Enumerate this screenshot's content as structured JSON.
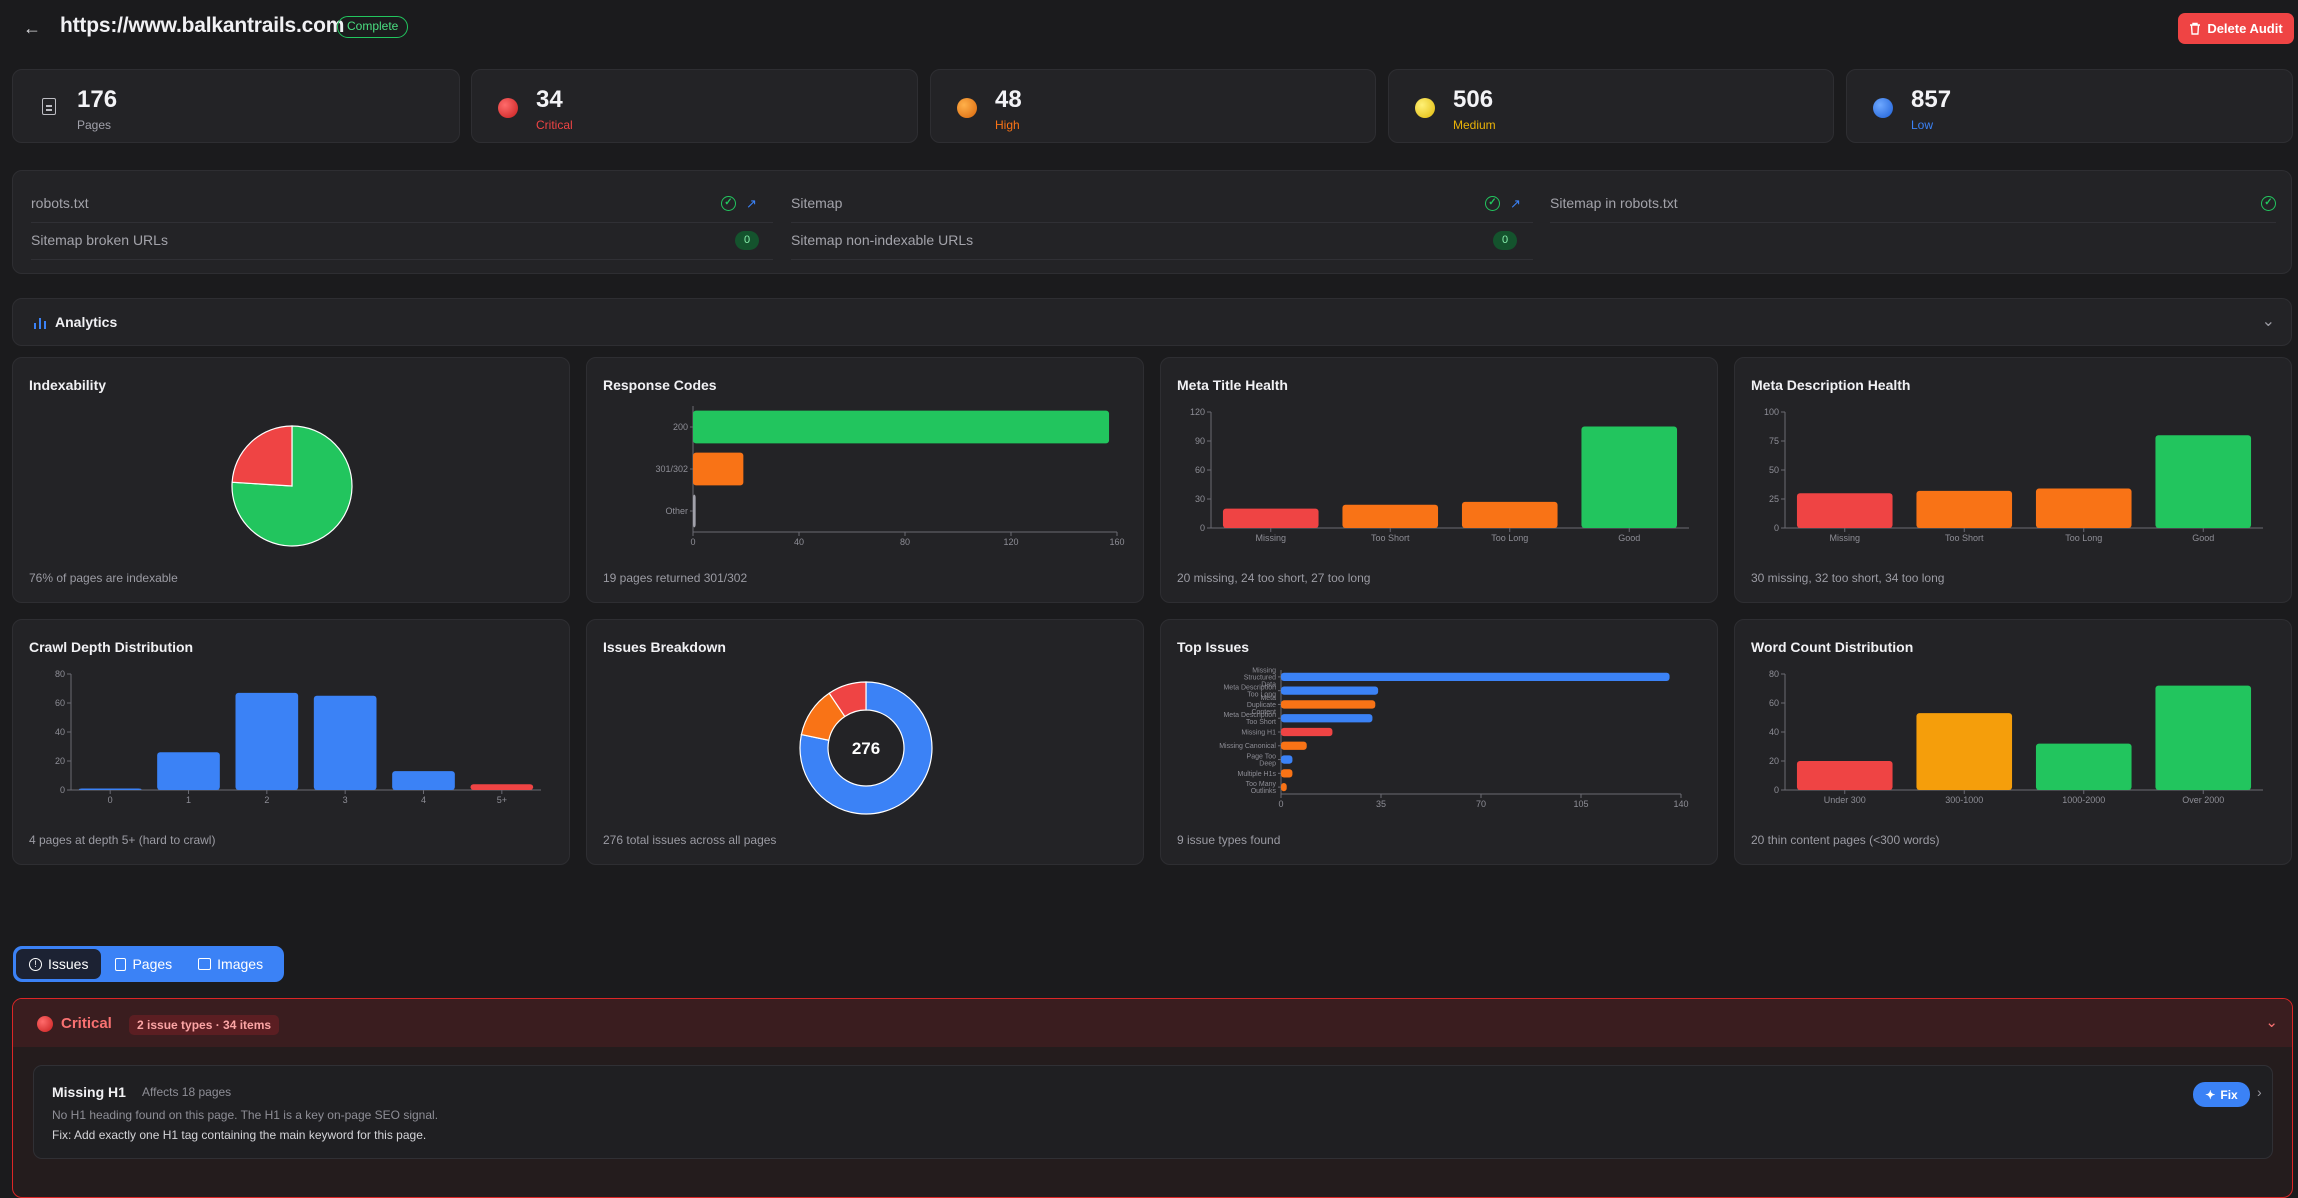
{
  "header": {
    "title": "https://www.balkantrails.com",
    "status": "Complete",
    "delete_label": "Delete Audit"
  },
  "stats": [
    {
      "value": "176",
      "label": "Pages",
      "color": "#a1a1aa"
    },
    {
      "value": "34",
      "label": "Critical",
      "color": "#ef4444"
    },
    {
      "value": "48",
      "label": "High",
      "color": "#f97316"
    },
    {
      "value": "506",
      "label": "Medium",
      "color": "#eab308"
    },
    {
      "value": "857",
      "label": "Low",
      "color": "#3b82f6"
    }
  ],
  "checks": {
    "robots": "robots.txt",
    "sitemap": "Sitemap",
    "sitemap_in_robots": "Sitemap in robots.txt",
    "sitemap_broken": "Sitemap broken URLs",
    "sitemap_broken_count": "0",
    "sitemap_nonindexable": "Sitemap non-indexable URLs",
    "sitemap_nonindexable_count": "0"
  },
  "analytics": {
    "title": "Analytics"
  },
  "charts": {
    "indexability": {
      "title": "Indexability",
      "summary": "76% of pages are indexable"
    },
    "response_codes": {
      "title": "Response Codes",
      "summary": "19 pages returned 301/302"
    },
    "meta_title": {
      "title": "Meta Title Health",
      "summary": "20 missing, 24 too short, 27 too long"
    },
    "meta_desc": {
      "title": "Meta Description Health",
      "summary": "30 missing, 32 too short, 34 too long"
    },
    "crawl_depth": {
      "title": "Crawl Depth Distribution",
      "summary": "4 pages at depth 5+ (hard to crawl)"
    },
    "issues_breakdown": {
      "title": "Issues Breakdown",
      "summary": "276 total issues across all pages",
      "center": "276"
    },
    "top_issues": {
      "title": "Top Issues",
      "summary": "9 issue types found"
    },
    "word_count": {
      "title": "Word Count Distribution",
      "summary": "20 thin content pages (<300 words)"
    }
  },
  "chart_data": [
    {
      "type": "pie",
      "title": "Indexability",
      "slices": [
        {
          "value": 76,
          "color": "#22c55e"
        },
        {
          "value": 24,
          "color": "#ef4444"
        }
      ]
    },
    {
      "type": "bar",
      "orientation": "horizontal",
      "title": "Response Codes",
      "categories": [
        "200",
        "301/302",
        "Other"
      ],
      "values": [
        157,
        19,
        1
      ],
      "colors": [
        "#22c55e",
        "#f97316",
        "#a1a1aa"
      ],
      "xticks": [
        "0",
        "40",
        "80",
        "120",
        "160"
      ],
      "xlim": [
        0,
        160
      ]
    },
    {
      "type": "bar",
      "title": "Meta Title Health",
      "categories": [
        "Missing",
        "Too Short",
        "Too Long",
        "Good"
      ],
      "values": [
        20,
        24,
        27,
        105
      ],
      "colors": [
        "#ef4444",
        "#f97316",
        "#f97316",
        "#22c55e"
      ],
      "yticks": [
        "0",
        "30",
        "60",
        "90",
        "120"
      ],
      "ylim": [
        0,
        120
      ]
    },
    {
      "type": "bar",
      "title": "Meta Description Health",
      "categories": [
        "Missing",
        "Too Short",
        "Too Long",
        "Good"
      ],
      "values": [
        30,
        32,
        34,
        80
      ],
      "colors": [
        "#ef4444",
        "#f97316",
        "#f97316",
        "#22c55e"
      ],
      "yticks": [
        "0",
        "25",
        "50",
        "75",
        "100"
      ],
      "ylim": [
        0,
        100
      ]
    },
    {
      "type": "bar",
      "title": "Crawl Depth Distribution",
      "categories": [
        "0",
        "1",
        "2",
        "3",
        "4",
        "5+"
      ],
      "values": [
        1,
        26,
        67,
        65,
        13,
        4
      ],
      "colors": [
        "#3b82f6",
        "#3b82f6",
        "#3b82f6",
        "#3b82f6",
        "#3b82f6",
        "#ef4444"
      ],
      "yticks": [
        "0",
        "20",
        "40",
        "60",
        "80"
      ],
      "ylim": [
        0,
        80
      ]
    },
    {
      "type": "donut",
      "title": "Issues Breakdown",
      "center": "276",
      "slices": [
        {
          "value": 216,
          "color": "#3b82f6"
        },
        {
          "value": 34,
          "color": "#f97316"
        },
        {
          "value": 26,
          "color": "#ef4444"
        }
      ]
    },
    {
      "type": "bar",
      "orientation": "horizontal",
      "title": "Top Issues",
      "categories": [
        [
          "Missing",
          "Structured",
          "Data"
        ],
        [
          "Meta Description",
          "Too Long"
        ],
        [
          "Meta",
          "Duplicate",
          "Content"
        ],
        [
          "Meta Description",
          "Too Short"
        ],
        [
          "Missing H1"
        ],
        [
          "Missing Canonical"
        ],
        [
          "Page Too",
          "Deep"
        ],
        [
          "Multiple H1s"
        ],
        [
          "Too Many",
          "Outlinks"
        ]
      ],
      "values": [
        136,
        34,
        33,
        32,
        18,
        9,
        4,
        4,
        2
      ],
      "colors": [
        "#3b82f6",
        "#3b82f6",
        "#f97316",
        "#3b82f6",
        "#ef4444",
        "#f97316",
        "#3b82f6",
        "#f97316",
        "#f97316"
      ],
      "xticks": [
        "0",
        "35",
        "70",
        "105",
        "140"
      ],
      "xlim": [
        0,
        140
      ]
    },
    {
      "type": "bar",
      "title": "Word Count Distribution",
      "categories": [
        "Under 300",
        "300-1000",
        "1000-2000",
        "Over 2000"
      ],
      "values": [
        20,
        53,
        32,
        72
      ],
      "colors": [
        "#ef4444",
        "#f59e0b",
        "#22c55e",
        "#22c55e"
      ],
      "yticks": [
        "0",
        "20",
        "40",
        "60",
        "80"
      ],
      "ylim": [
        0,
        80
      ]
    }
  ],
  "tabs": [
    {
      "label": "Issues"
    },
    {
      "label": "Pages"
    },
    {
      "label": "Images"
    }
  ],
  "critical": {
    "title": "Critical",
    "count": "2 issue types · 34 items",
    "issue": {
      "title": "Missing H1",
      "affects": "Affects 18 pages",
      "description": "No H1 heading found on this page. The H1 is a key on-page SEO signal.",
      "fix_text": "Fix: Add exactly one H1 tag containing the main keyword for this page.",
      "fix_label": "Fix"
    }
  }
}
